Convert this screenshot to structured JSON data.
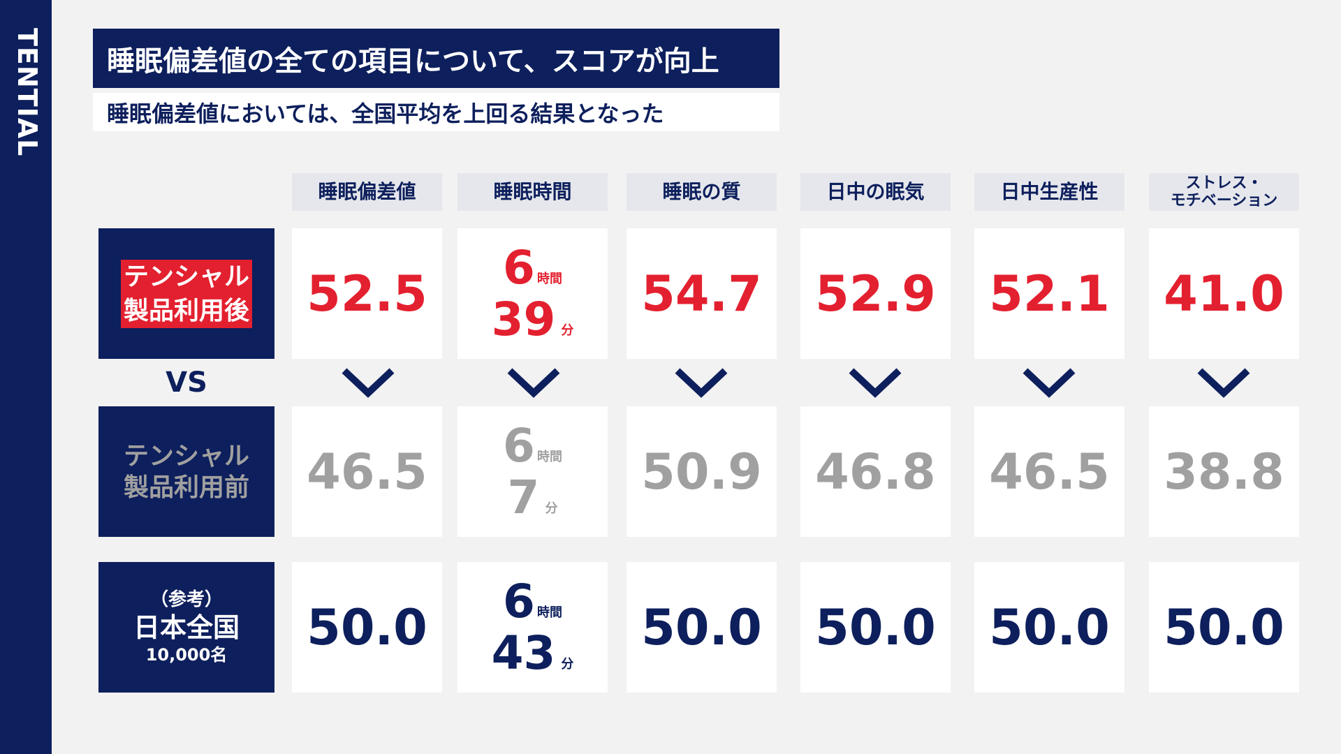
{
  "brand": "TENTIAL",
  "title": "睡眠偏差値の全ての項目について、スコアが向上",
  "subtitle": "睡眠偏差値においては、全国平均を上回る結果となった",
  "columns": [
    "睡眠偏差値",
    "睡眠時間",
    "睡眠の質",
    "日中の眠気",
    "日中生産性",
    "ストレス・\nモチベーション"
  ],
  "vs_label": "VS",
  "rows": {
    "after": {
      "label_line1": "テンシャル",
      "label_line2": "製品利用後",
      "values": [
        "52.5",
        "54.7",
        "52.9",
        "52.1",
        "41.0"
      ],
      "time": {
        "hours": "6",
        "hours_unit": "時間",
        "minutes": "39",
        "minutes_unit": "分"
      }
    },
    "before": {
      "label_line1": "テンシャル",
      "label_line2": "製品利用前",
      "values": [
        "46.5",
        "50.9",
        "46.8",
        "46.5",
        "38.8"
      ],
      "time": {
        "hours": "6",
        "hours_unit": "時間",
        "minutes": "7",
        "minutes_unit": "分"
      }
    },
    "reference": {
      "label_pre": "（参考）",
      "label_main": "日本全国",
      "label_sub": "10,000名",
      "values": [
        "50.0",
        "50.0",
        "50.0",
        "50.0",
        "50.0"
      ],
      "time": {
        "hours": "6",
        "hours_unit": "時間",
        "minutes": "43",
        "minutes_unit": "分"
      }
    }
  },
  "colors": {
    "navy": "#0d1f5c",
    "red": "#e3202f",
    "gray": "#a0a0a0"
  },
  "icons": [
    "chevron-down-icon"
  ]
}
